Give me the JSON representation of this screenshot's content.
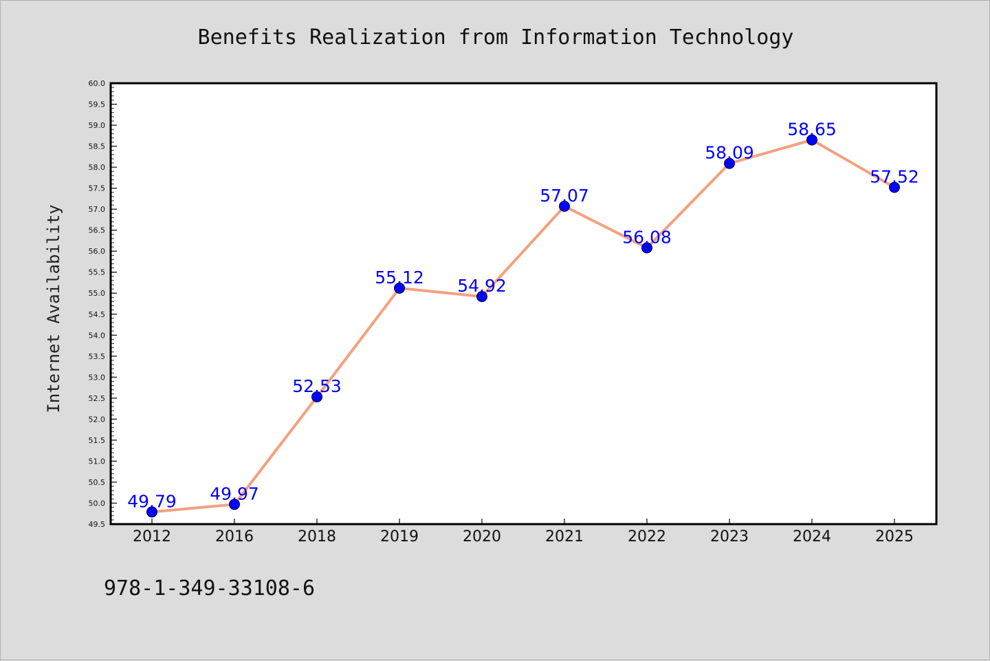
{
  "chart_data": {
    "type": "line",
    "title": "Benefits Realization from Information Technology",
    "xlabel": "",
    "ylabel": "Internet Availability",
    "categories": [
      "2012",
      "2016",
      "2018",
      "2019",
      "2020",
      "2021",
      "2022",
      "2023",
      "2024",
      "2025"
    ],
    "series": [
      {
        "values": [
          49.79,
          49.97,
          52.53,
          55.12,
          54.92,
          57.07,
          56.08,
          58.09,
          58.65,
          57.52
        ],
        "data_labels": [
          "49.79",
          "49.97",
          "52.53",
          "55.12",
          "54.92",
          "57.07",
          "56.08",
          "58.09",
          "58.65",
          "57.52"
        ],
        "line_color": "#f4a07f",
        "marker_color": "#0000ff"
      }
    ],
    "ylim": [
      49.5,
      60.0
    ],
    "yticks": [
      "49.5",
      "50.0",
      "50.5",
      "51.0",
      "51.5",
      "52.0",
      "52.5",
      "53.0",
      "53.5",
      "54.0",
      "54.5",
      "55.0",
      "55.5",
      "56.0",
      "56.5",
      "57.0",
      "57.5",
      "58.0",
      "58.5",
      "59.0",
      "59.5",
      "60.0"
    ],
    "grid": false,
    "legend": "none"
  },
  "footnote": "978-1-349-33108-6",
  "colors": {
    "background": "#dcdcdc",
    "plot_area": "#ffffff",
    "line": "#f4a07f",
    "marker": "#0000ff",
    "data_label": "#0000ff"
  }
}
